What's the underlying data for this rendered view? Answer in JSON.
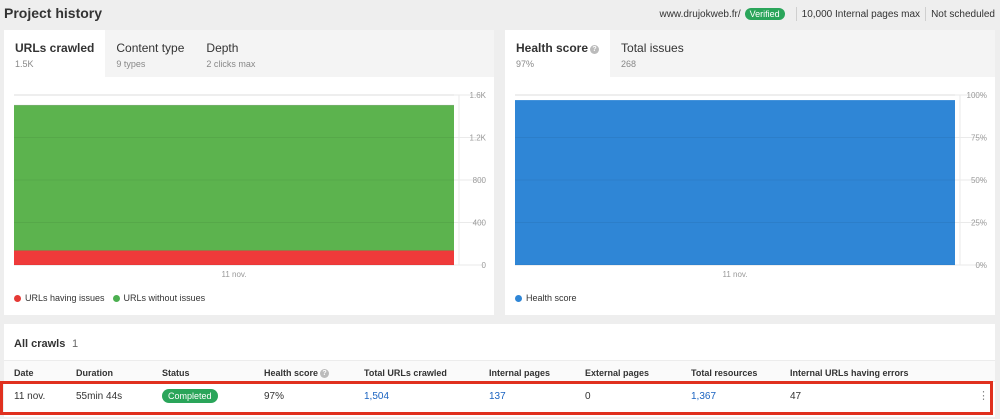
{
  "header": {
    "title": "Project history",
    "domain": "www.drujokweb.fr/",
    "verified": "Verified",
    "pages_max": "10,000 Internal pages max",
    "schedule": "Not scheduled"
  },
  "left_card": {
    "tabs": [
      {
        "label": "URLs crawled",
        "sub": "1.5K"
      },
      {
        "label": "Content type",
        "sub": "9 types"
      },
      {
        "label": "Depth",
        "sub": "2 clicks max"
      }
    ],
    "legend": [
      {
        "label": "URLs having issues",
        "color": "#e53935"
      },
      {
        "label": "URLs without issues",
        "color": "#4caf50"
      }
    ]
  },
  "right_card": {
    "tabs": [
      {
        "label": "Health score",
        "sub": "97%"
      },
      {
        "label": "Total issues",
        "sub": "268"
      }
    ],
    "legend": [
      {
        "label": "Health score",
        "color": "#2f86d6"
      }
    ]
  },
  "chart_data": [
    {
      "type": "area",
      "x": [
        "11 nov."
      ],
      "yticks": [
        "1.6K",
        "1.2K",
        "800",
        "400",
        "0"
      ],
      "ylim": [
        0,
        1600
      ],
      "series": [
        {
          "name": "URLs having issues",
          "values": [
            137
          ],
          "color": "#ef3a3a"
        },
        {
          "name": "URLs without issues",
          "values": [
            1367
          ],
          "color": "#5cb34e"
        }
      ]
    },
    {
      "type": "area",
      "x": [
        "11 nov."
      ],
      "yticks": [
        "100%",
        "75%",
        "50%",
        "25%",
        "0%"
      ],
      "ylim": [
        0,
        100
      ],
      "series": [
        {
          "name": "Health score",
          "values": [
            97
          ],
          "color": "#2f86d6"
        }
      ]
    }
  ],
  "crawls": {
    "title": "All crawls",
    "count": "1",
    "columns": [
      "Date",
      "Duration",
      "Status",
      "Health score",
      "Total URLs crawled",
      "Internal pages",
      "External pages",
      "Total resources",
      "Internal URLs having errors"
    ],
    "row": {
      "date": "11 nov.",
      "duration": "55min 44s",
      "status": "Completed",
      "health": "97%",
      "total_urls": "1,504",
      "internal": "137",
      "external": "0",
      "resources": "1,367",
      "errors": "47"
    }
  }
}
